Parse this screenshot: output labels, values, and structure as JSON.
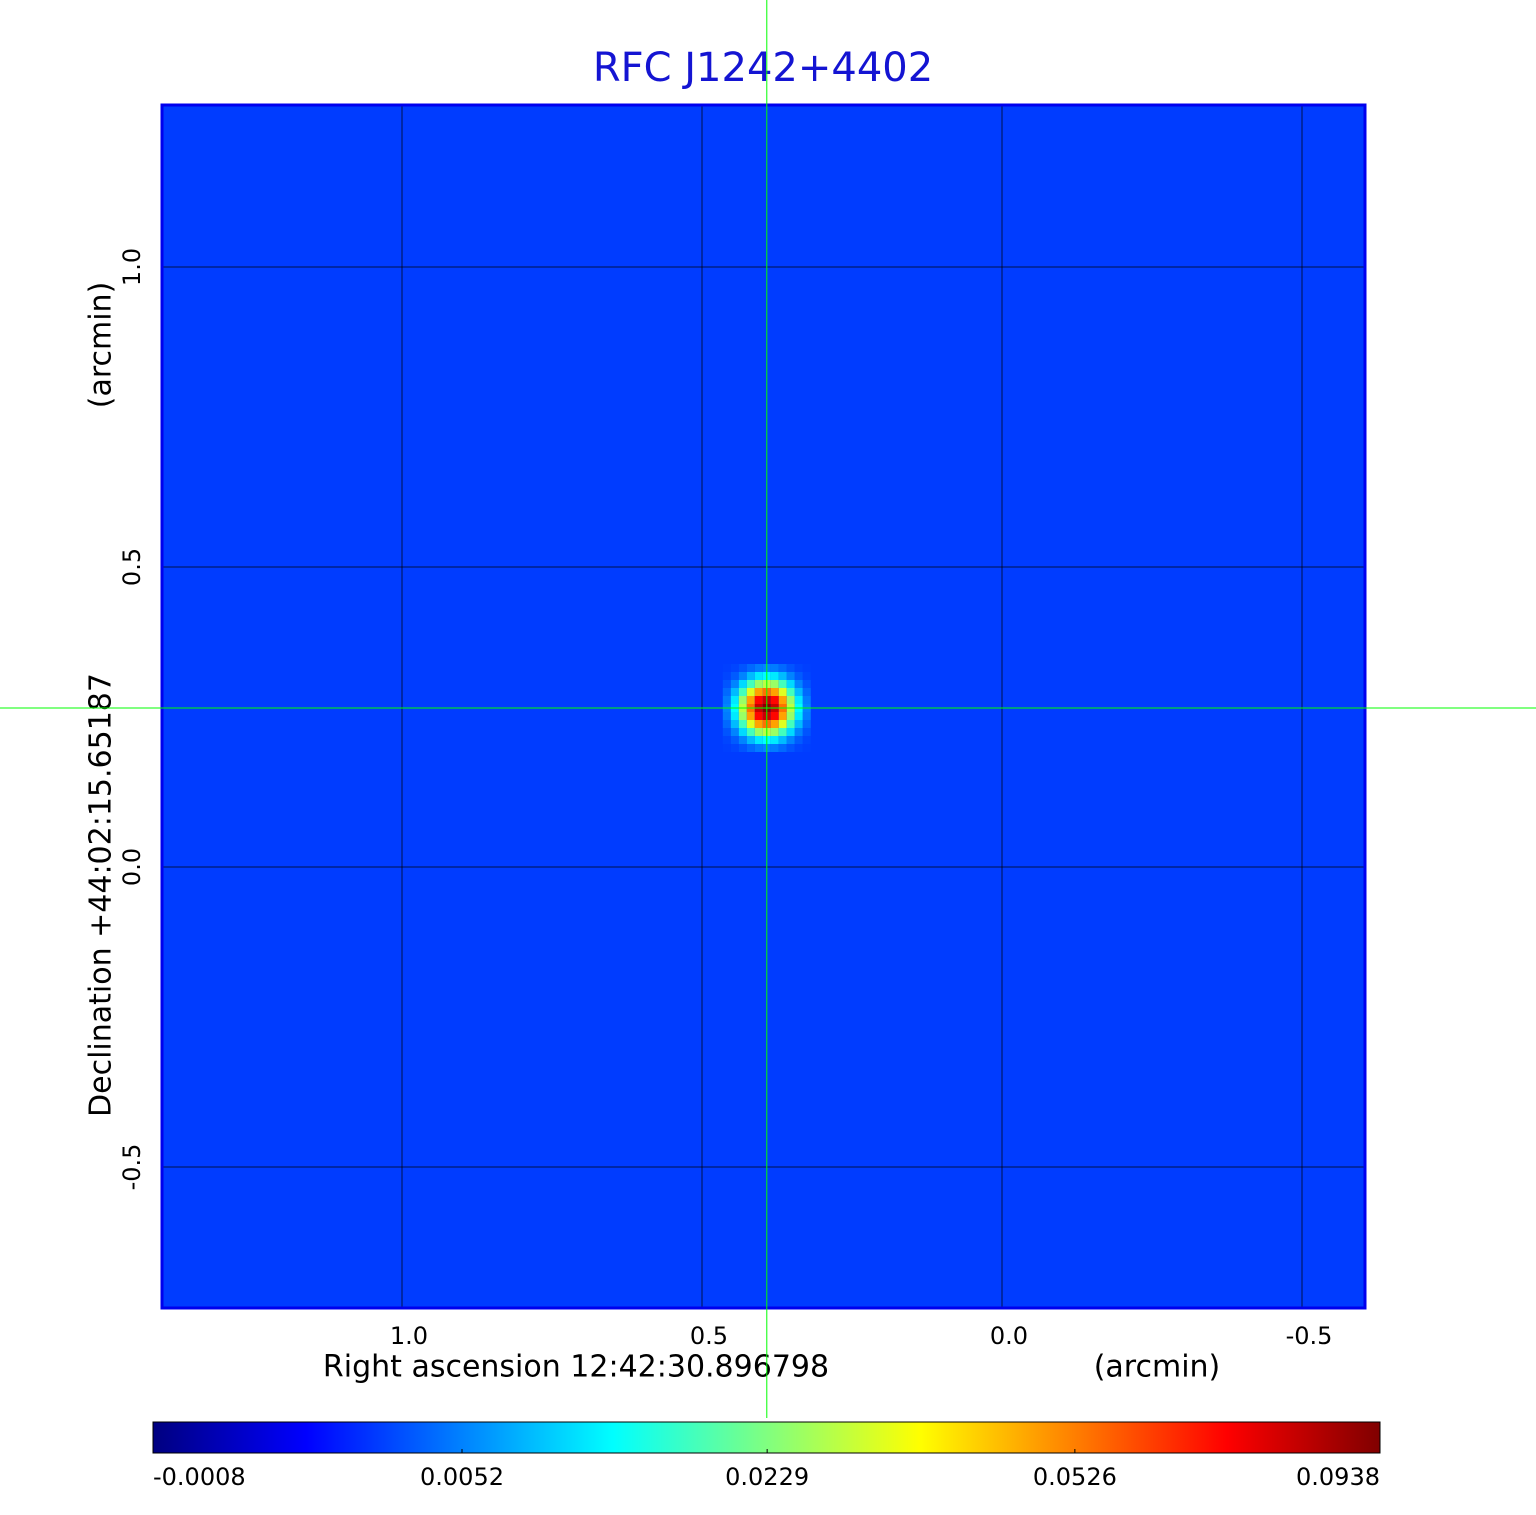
{
  "chart_data": {
    "type": "image",
    "title": "RFC J1242+4402",
    "x_label": "Right ascension  12:42:30.896798",
    "x_unit": "(arcmin)",
    "y_label": "Declination  +44:02:15.65187",
    "y_unit": "(arcmin)",
    "xlim": [
      1.4,
      -0.605
    ],
    "ylim": [
      -0.735,
      1.27
    ],
    "xticks": [
      {
        "value": 1,
        "label": "1.0"
      },
      0.5,
      {
        "value": 0,
        "label": "0.0"
      },
      -0.5
    ],
    "yticks": [
      {
        "value": 1,
        "label": "1.0"
      },
      0.5,
      {
        "value": 0,
        "label": "0.0"
      },
      -0.5
    ],
    "grid": true,
    "colormap": "jet",
    "background": 0.0024,
    "sources": [
      {
        "x": 0.392,
        "y": 0.265,
        "peak": 0.09,
        "fwhm": 0.06
      }
    ],
    "crosshair": {
      "x": 0.392,
      "y": 0.265,
      "color": "#00ff00"
    },
    "colorbar": {
      "lim": [
        -0.0008,
        0.0938
      ],
      "ticks": [
        -0.0008,
        0.0052,
        0.0229,
        0.0526,
        0.0938
      ],
      "scale": "sqrt"
    }
  }
}
